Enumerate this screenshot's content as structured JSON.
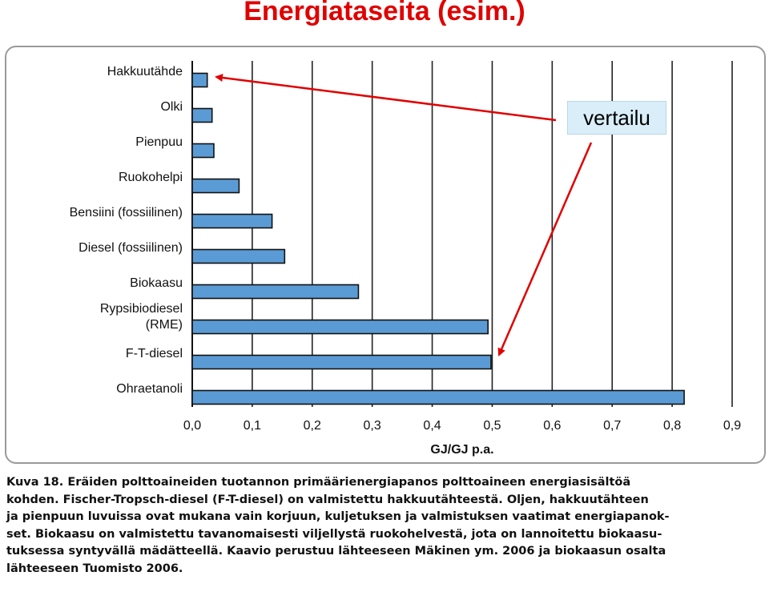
{
  "slide": {
    "title": "Energiataseita (esim.)",
    "callout": "vertailu"
  },
  "chart_data": {
    "type": "bar",
    "orientation": "horizontal",
    "categories": [
      "Hakkuutähde",
      "Olki",
      "Pienpuu",
      "Ruokohelpi",
      "Bensiini (fossiilinen)",
      "Diesel (fossiilinen)",
      "Biokaasu",
      "Rypsibiodiesel (RME)",
      "F-T-diesel",
      "Ohraetanoli"
    ],
    "values": [
      0.025,
      0.033,
      0.036,
      0.078,
      0.133,
      0.154,
      0.277,
      0.493,
      0.498,
      0.82
    ],
    "xlabel": "GJ/GJ p.a.",
    "xlim": [
      0,
      0.9
    ],
    "xticks": [
      "0,0",
      "0,1",
      "0,2",
      "0,3",
      "0,4",
      "0,5",
      "0,6",
      "0,7",
      "0,8",
      "0,9"
    ],
    "grid": "vertical",
    "bar_color": "#5b9bd5",
    "bar_edge_color": "#111111"
  },
  "caption": {
    "lines": [
      "Kuva 18. Eräiden polttoaineiden tuotannon primäärienergiapanos polttoaineen energiasisältöä",
      "kohden. Fischer-Tropsch-diesel (F-T-diesel) on valmistettu hakkuutähteestä. Oljen, hakkuutähteen",
      "ja pienpuun luvuissa ovat mukana vain korjuun, kuljetuksen ja valmistuksen vaatimat energiapanok-",
      "set. Biokaasu on valmistettu tavanomaisesti viljellystä ruokohelvestä, jota on lannoitettu biokaasu-",
      "tuksessa syntyvällä mädätteellä. Kaavio perustuu lähteeseen Mäkinen ym. 2006 ja biokaasun osalta",
      "lähteeseen Tuomisto 2006."
    ]
  },
  "colors": {
    "title": "#e00000",
    "arrow": "#e00000",
    "callout_bg": "#d9eef8"
  }
}
